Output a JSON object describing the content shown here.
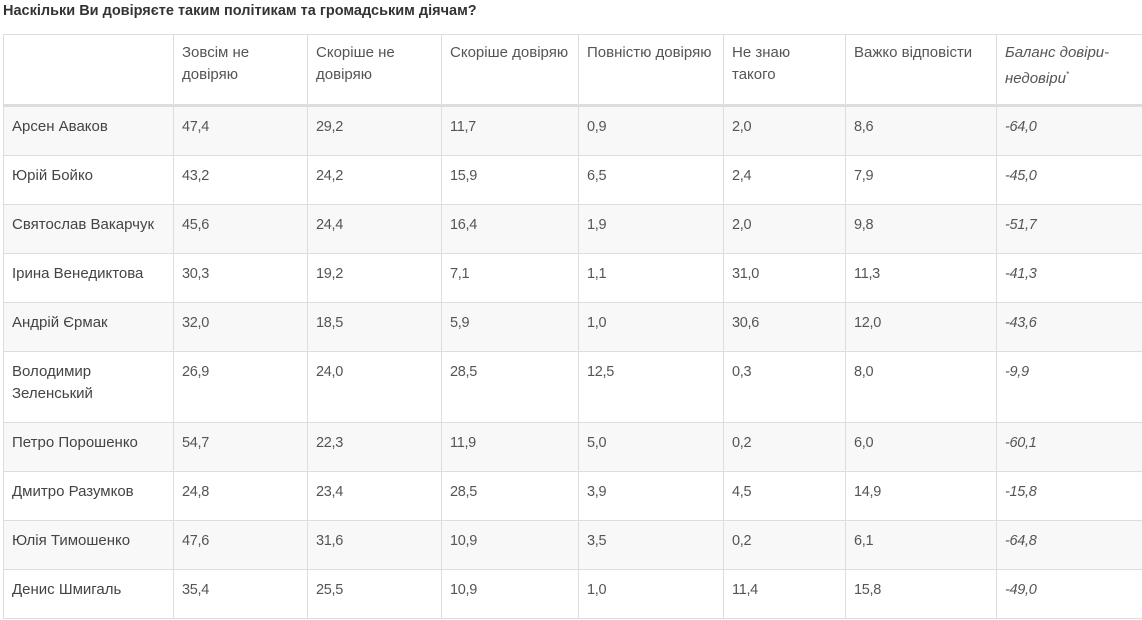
{
  "title": "Наскільки Ви довіряєте таким політикам та громадським діячам?",
  "columns": [
    "",
    "Зовсім не довіряю",
    "Скоріше не довіряю",
    "Скоріше довіряю",
    "Повністю довіряю",
    "Не знаю такого",
    "Важко відповісти",
    "Баланс довіри-недовіри"
  ],
  "balance_footnote_mark": "*",
  "rows": [
    {
      "name": "Арсен Аваков",
      "values": [
        "47,4",
        "29,2",
        "11,7",
        "0,9",
        "2,0",
        "8,6",
        "-64,0"
      ]
    },
    {
      "name": "Юрій Бойко",
      "values": [
        "43,2",
        "24,2",
        "15,9",
        "6,5",
        "2,4",
        "7,9",
        "-45,0"
      ]
    },
    {
      "name": "Святослав Вакарчук",
      "values": [
        "45,6",
        "24,4",
        "16,4",
        "1,9",
        "2,0",
        "9,8",
        "-51,7"
      ]
    },
    {
      "name": "Ірина Венедиктова",
      "values": [
        "30,3",
        "19,2",
        "7,1",
        "1,1",
        "31,0",
        "11,3",
        "-41,3"
      ]
    },
    {
      "name": "Андрій Єрмак",
      "values": [
        "32,0",
        "18,5",
        "5,9",
        "1,0",
        "30,6",
        "12,0",
        "-43,6"
      ]
    },
    {
      "name": "Володимир Зеленський",
      "values": [
        "26,9",
        "24,0",
        "28,5",
        "12,5",
        "0,3",
        "8,0",
        "-9,9"
      ]
    },
    {
      "name": "Петро Порошенко",
      "values": [
        "54,7",
        "22,3",
        "11,9",
        "5,0",
        "0,2",
        "6,0",
        "-60,1"
      ]
    },
    {
      "name": "Дмитро Разумков",
      "values": [
        "24,8",
        "23,4",
        "28,5",
        "3,9",
        "4,5",
        "14,9",
        "-15,8"
      ]
    },
    {
      "name": "Юлія Тимошенко",
      "values": [
        "47,6",
        "31,6",
        "10,9",
        "3,5",
        "0,2",
        "6,1",
        "-64,8"
      ]
    },
    {
      "name": "Денис Шмигаль",
      "values": [
        "35,4",
        "25,5",
        "10,9",
        "1,0",
        "11,4",
        "15,8",
        "-49,0"
      ]
    }
  ]
}
